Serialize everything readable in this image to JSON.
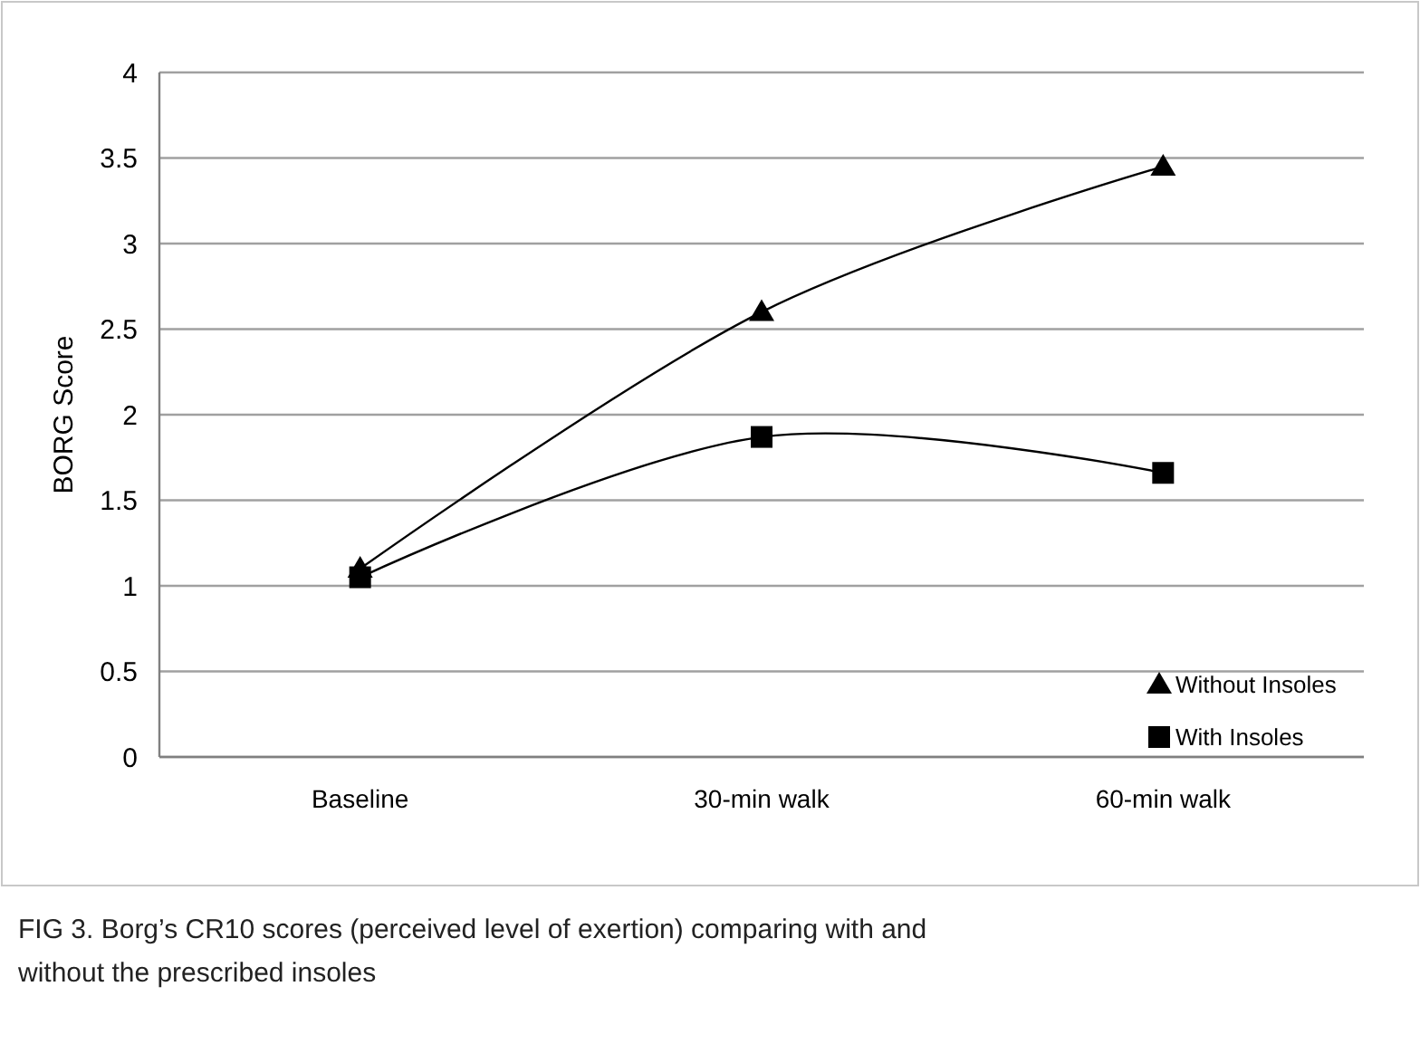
{
  "chart_data": {
    "type": "line",
    "ylabel": "BORG Score",
    "categories": [
      "Baseline",
      "30-min walk",
      "60-min walk"
    ],
    "series": [
      {
        "name": "Without Insoles",
        "color": "#000000",
        "marker": "triangle",
        "values": [
          1.1,
          2.6,
          3.45
        ]
      },
      {
        "name": "With Insoles",
        "color": "#000000",
        "marker": "square",
        "values": [
          1.05,
          1.87,
          1.66
        ]
      }
    ],
    "ylim": [
      0,
      4
    ],
    "yticks": [
      0,
      0.5,
      1,
      1.5,
      2,
      2.5,
      3,
      3.5,
      4
    ],
    "grid": "y",
    "legend": "bottom right",
    "annotations": [
      "FIG 3.  Borg’s CR10 scores (perceived level of exertion) comparing with and without the prescribed insoles"
    ]
  }
}
